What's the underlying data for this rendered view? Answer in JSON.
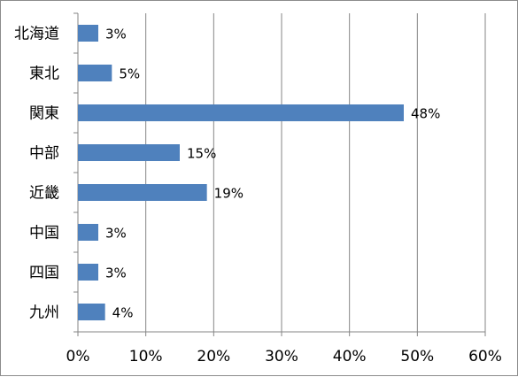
{
  "chart_data": {
    "type": "bar",
    "orientation": "horizontal",
    "categories": [
      "北海道",
      "東北",
      "関東",
      "中部",
      "近畿",
      "中国",
      "四国",
      "九州"
    ],
    "values": [
      3,
      5,
      48,
      15,
      19,
      3,
      3,
      4
    ],
    "data_labels": [
      "3%",
      "5%",
      "48%",
      "15%",
      "19%",
      "3%",
      "3%",
      "4%"
    ],
    "x_ticks": [
      "0%",
      "10%",
      "20%",
      "30%",
      "40%",
      "50%",
      "60%"
    ],
    "xlim": [
      0,
      60
    ],
    "unit": "%",
    "grid": "vertical",
    "legend": "none",
    "colors": {
      "bar": "#4f81bd",
      "grid": "#868686",
      "axis": "#868686",
      "frame": "#8c8c8c"
    }
  }
}
